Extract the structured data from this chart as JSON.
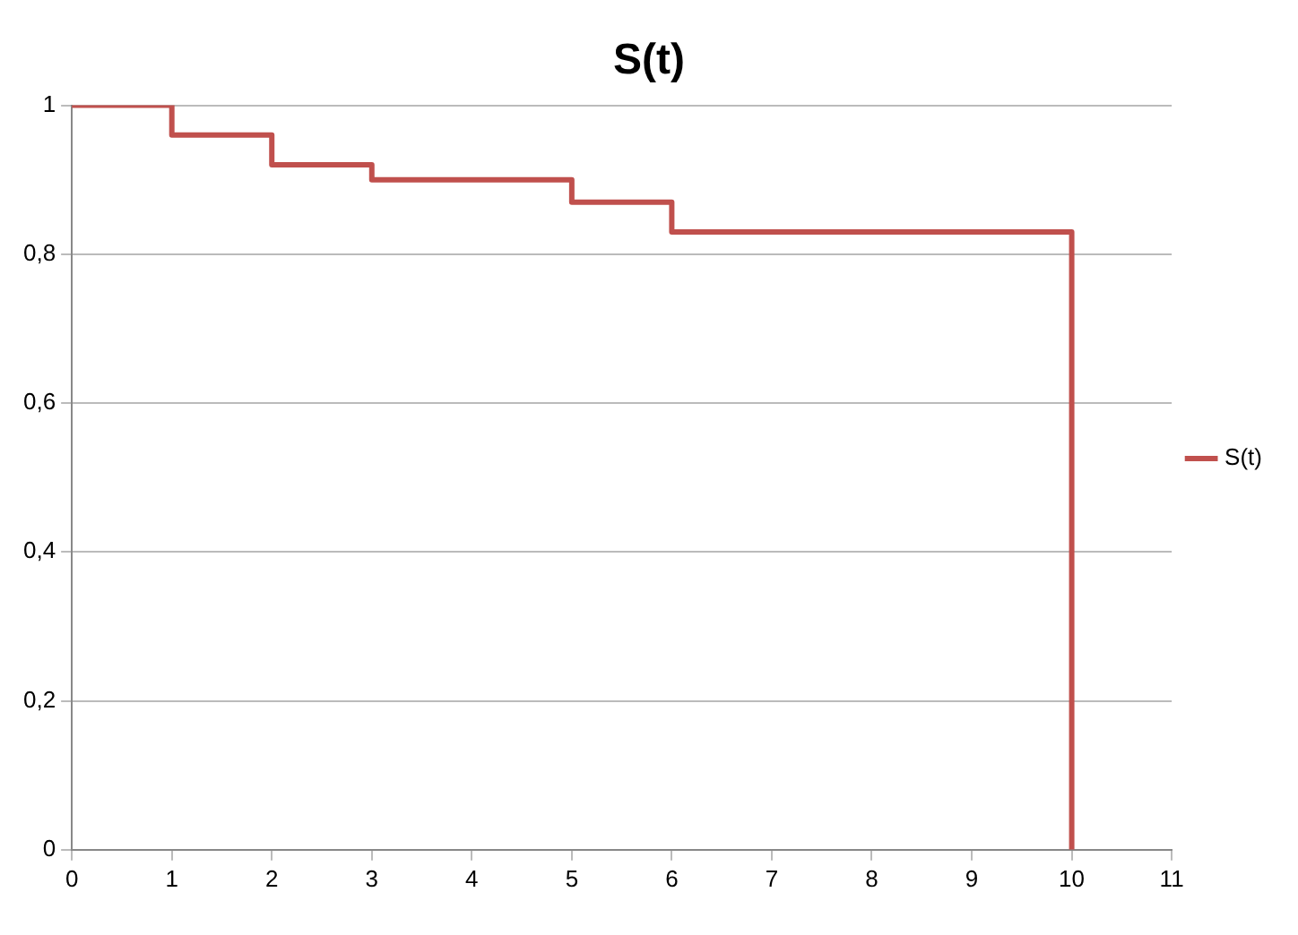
{
  "chart_data": {
    "type": "step",
    "title": "S(t)",
    "x": [
      0,
      1,
      2,
      3,
      5,
      6,
      10
    ],
    "series": [
      {
        "name": "S(t)",
        "color": "#c0504d",
        "values": [
          1,
          0.96,
          0.92,
          0.9,
          0.87,
          0.83,
          0
        ]
      }
    ],
    "xlim": [
      0,
      11
    ],
    "xticks": [
      0,
      1,
      2,
      3,
      4,
      5,
      6,
      7,
      8,
      9,
      10,
      11
    ],
    "ylim": [
      0,
      1
    ],
    "yticks": [
      0,
      {
        "value": 0.2,
        "label": "0,2"
      },
      {
        "value": 0.4,
        "label": "0,4"
      },
      {
        "value": 0.6,
        "label": "0,6"
      },
      {
        "value": 0.8,
        "label": "0,8"
      },
      1
    ],
    "grid": "y",
    "legend": "right",
    "marker": "none"
  }
}
